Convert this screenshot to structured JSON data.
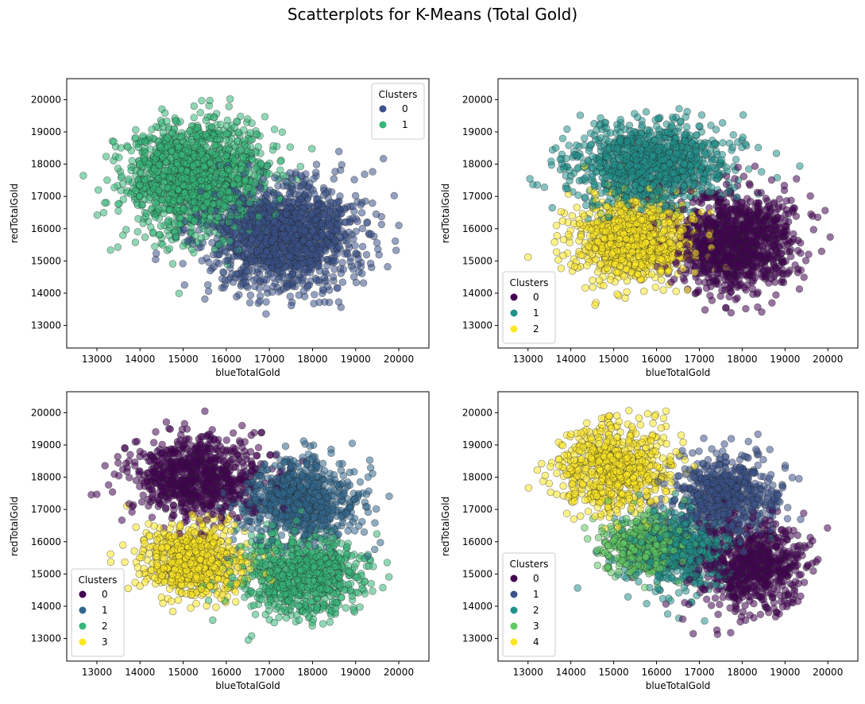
{
  "figure_title": "Scatterplots for K-Means (Total Gold)",
  "chart_data": [
    {
      "type": "scatter",
      "title": "",
      "xlabel": "blueTotalGold",
      "ylabel": "redTotalGold",
      "xlim": [
        12300,
        20700
      ],
      "ylim": [
        12300,
        20650
      ],
      "xticks": [
        13000,
        14000,
        15000,
        16000,
        17000,
        18000,
        19000,
        20000
      ],
      "yticks": [
        13000,
        14000,
        15000,
        16000,
        17000,
        18000,
        19000,
        20000
      ],
      "grid": false,
      "legend": {
        "title": "Clusters",
        "placement": "upper right"
      },
      "n_clusters": 2,
      "series": [
        {
          "name": "0",
          "color": "#3b528b",
          "center": [
            17350,
            15800
          ],
          "spread": [
            1200,
            1150
          ],
          "count": 1500
        },
        {
          "name": "1",
          "color": "#35b779",
          "center": [
            15300,
            17600
          ],
          "spread": [
            1100,
            1150
          ],
          "count": 1500
        }
      ]
    },
    {
      "type": "scatter",
      "title": "",
      "xlabel": "blueTotalGold",
      "ylabel": "redTotalGold",
      "xlim": [
        12300,
        20700
      ],
      "ylim": [
        12300,
        20650
      ],
      "xticks": [
        13000,
        14000,
        15000,
        16000,
        17000,
        18000,
        19000,
        20000
      ],
      "yticks": [
        13000,
        14000,
        15000,
        16000,
        17000,
        18000,
        19000,
        20000
      ],
      "grid": false,
      "legend": {
        "title": "Clusters",
        "placement": "lower left"
      },
      "n_clusters": 3,
      "series": [
        {
          "name": "0",
          "color": "#440154",
          "center": [
            17900,
            15600
          ],
          "spread": [
            950,
            1050
          ],
          "count": 1100
        },
        {
          "name": "1",
          "color": "#21918c",
          "center": [
            15900,
            18000
          ],
          "spread": [
            1200,
            900
          ],
          "count": 1100
        },
        {
          "name": "2",
          "color": "#fde725",
          "center": [
            15500,
            15700
          ],
          "spread": [
            900,
            850
          ],
          "count": 1000
        }
      ]
    },
    {
      "type": "scatter",
      "title": "",
      "xlabel": "blueTotalGold",
      "ylabel": "redTotalGold",
      "xlim": [
        12300,
        20700
      ],
      "ylim": [
        12300,
        20650
      ],
      "xticks": [
        13000,
        14000,
        15000,
        16000,
        17000,
        18000,
        19000,
        20000
      ],
      "yticks": [
        13000,
        14000,
        15000,
        16000,
        17000,
        18000,
        19000,
        20000
      ],
      "grid": false,
      "legend": {
        "title": "Clusters",
        "placement": "lower left"
      },
      "n_clusters": 4,
      "series": [
        {
          "name": "0",
          "color": "#440154",
          "center": [
            15300,
            18000
          ],
          "spread": [
            950,
            850
          ],
          "count": 800
        },
        {
          "name": "1",
          "color": "#31688e",
          "center": [
            17700,
            17300
          ],
          "spread": [
            900,
            850
          ],
          "count": 800
        },
        {
          "name": "2",
          "color": "#35b779",
          "center": [
            17800,
            15000
          ],
          "spread": [
            1000,
            900
          ],
          "count": 800
        },
        {
          "name": "3",
          "color": "#fde725",
          "center": [
            15200,
            15400
          ],
          "spread": [
            800,
            750
          ],
          "count": 750
        }
      ]
    },
    {
      "type": "scatter",
      "title": "",
      "xlabel": "blueTotalGold",
      "ylabel": "redTotalGold",
      "xlim": [
        12300,
        20700
      ],
      "ylim": [
        12300,
        20650
      ],
      "xticks": [
        13000,
        14000,
        15000,
        16000,
        17000,
        18000,
        19000,
        20000
      ],
      "yticks": [
        13000,
        14000,
        15000,
        16000,
        17000,
        18000,
        19000,
        20000
      ],
      "grid": false,
      "legend": {
        "title": "Clusters",
        "placement": "lower left"
      },
      "n_clusters": 5,
      "series": [
        {
          "name": "0",
          "color": "#440154",
          "center": [
            18200,
            15200
          ],
          "spread": [
            900,
            1000
          ],
          "count": 700
        },
        {
          "name": "1",
          "color": "#3b528b",
          "center": [
            17600,
            17400
          ],
          "spread": [
            800,
            800
          ],
          "count": 650
        },
        {
          "name": "2",
          "color": "#21918c",
          "center": [
            16500,
            15700
          ],
          "spread": [
            800,
            800
          ],
          "count": 600
        },
        {
          "name": "3",
          "color": "#5ec962",
          "center": [
            15700,
            15900
          ],
          "spread": [
            600,
            600
          ],
          "count": 450
        },
        {
          "name": "4",
          "color": "#fde725",
          "center": [
            15000,
            18300
          ],
          "spread": [
            900,
            900
          ],
          "count": 700
        }
      ]
    }
  ]
}
